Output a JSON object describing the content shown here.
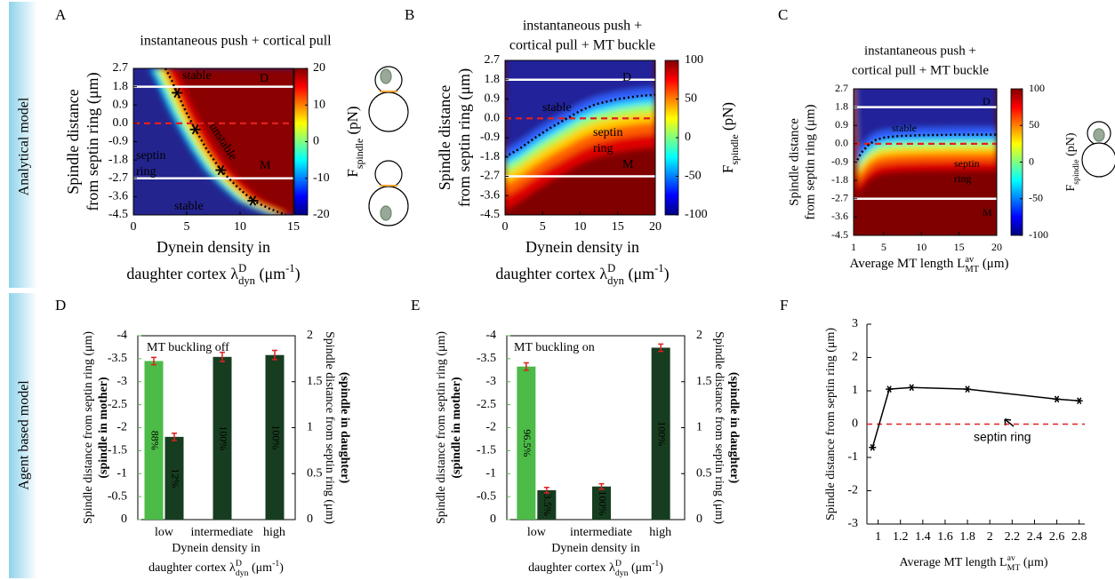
{
  "row_labels": [
    "Analytical model",
    "Agent based model"
  ],
  "chart_data": [
    {
      "panel": "A",
      "type": "heatmap",
      "title": [
        "instantaneous push + cortical pull"
      ],
      "xlabel": [
        "Dynein density in",
        [
          "daughter cortex λ",
          "D",
          "dyn",
          " (μm",
          "-1",
          ")"
        ]
      ],
      "ylabel": [
        "Spindle distance",
        "from septin ring (μm)"
      ],
      "xlim": [
        0,
        15
      ],
      "xticks": [
        0,
        5,
        10,
        15
      ],
      "ylim": [
        -4.5,
        2.7
      ],
      "yticks": [
        2.7,
        1.8,
        0.9,
        {
          "value": 0,
          "label": "0.0"
        },
        -0.9,
        -1.8,
        -2.7,
        -3.6,
        -4.5
      ],
      "colormap": "jet",
      "clim": [
        -20,
        20
      ],
      "cticks": [
        20,
        10,
        0,
        -10,
        -20
      ],
      "clabel": [
        "F",
        "spindle",
        " (pN)"
      ],
      "hlines": [
        1.8,
        -2.7
      ],
      "septin_line": 0,
      "boundary": {
        "x": [
          3.0,
          3.6,
          4.1,
          4.9,
          5.8,
          6.9,
          8.2,
          9.7,
          11.2,
          12.8,
          14.3
        ],
        "y": [
          2.7,
          2.1,
          1.5,
          0.6,
          -0.3,
          -1.3,
          -2.3,
          -3.1,
          -3.8,
          -4.2,
          -4.5
        ]
      },
      "markers": {
        "x": [
          4.1,
          5.8,
          8.2,
          11.2
        ],
        "y": [
          1.5,
          -0.3,
          -2.3,
          -3.8
        ]
      },
      "annotations": [
        "stable",
        "D",
        "unstable",
        "septin",
        "ring",
        "M",
        "stable"
      ]
    },
    {
      "panel": "B",
      "type": "heatmap",
      "title": [
        "instantaneous push +",
        "cortical pull + MT buckle"
      ],
      "xlabel": [
        "Dynein density in",
        [
          "daughter cortex λ",
          "D",
          "dyn",
          " (μm",
          "-1",
          ")"
        ]
      ],
      "ylabel": [
        "Spindle distance",
        "from septin ring (μm)"
      ],
      "xlim": [
        0,
        20
      ],
      "xticks": [
        0,
        5,
        10,
        15,
        20
      ],
      "ylim": [
        -4.5,
        2.7
      ],
      "yticks": [
        2.7,
        1.8,
        0.9,
        {
          "value": 0,
          "label": "0.0"
        },
        -0.9,
        -1.8,
        -2.7,
        -3.6,
        -4.5
      ],
      "colormap": "jet",
      "clim": [
        -100,
        100
      ],
      "cticks": [
        100,
        50,
        0,
        -50,
        -100
      ],
      "clabel": [
        "F",
        "spindle",
        " (pN)"
      ],
      "hlines": [
        1.8,
        -2.7
      ],
      "septin_line": 0,
      "boundary": {
        "x": [
          0,
          2,
          4,
          6,
          8,
          10,
          12,
          15,
          18,
          20
        ],
        "y": [
          -1.8,
          -1.4,
          -0.9,
          -0.45,
          -0.05,
          0.35,
          0.65,
          0.9,
          1.05,
          1.1
        ]
      },
      "annotations": [
        "D",
        "stable",
        "septin",
        "ring",
        "M"
      ]
    },
    {
      "panel": "C",
      "type": "heatmap",
      "title": [
        "instantaneous push +",
        "cortical pull + MT buckle"
      ],
      "xlabel": [
        [
          "Average MT length L",
          "av",
          "MT",
          " (μm)"
        ]
      ],
      "ylabel": [
        "Spindle distance",
        "from septin ring (μm)"
      ],
      "xlim": [
        1,
        20
      ],
      "xticks": [
        1,
        5,
        10,
        15,
        20
      ],
      "ylim": [
        -4.5,
        2.7
      ],
      "yticks": [
        2.7,
        1.8,
        0.9,
        {
          "value": 0,
          "label": "0.0"
        },
        -0.9,
        -1.8,
        -2.7,
        -3.6,
        -4.5
      ],
      "colormap": "jet",
      "clim": [
        -100,
        100
      ],
      "cticks": [
        100,
        50,
        0,
        -50,
        -100
      ],
      "clabel": [
        "F",
        "spindle",
        " (pN)"
      ],
      "hlines": [
        1.8,
        -2.7
      ],
      "septin_line": 0,
      "boundary": {
        "x": [
          1.5,
          2,
          3,
          4,
          5,
          7,
          10,
          15,
          20
        ],
        "y": [
          -0.8,
          -0.45,
          -0.05,
          0.2,
          0.3,
          0.38,
          0.42,
          0.45,
          0.45
        ]
      },
      "annotations": [
        "D",
        "stable",
        "septin",
        "ring",
        "M"
      ]
    },
    {
      "panel": "D",
      "type": "bar",
      "annotation": "MT buckling off",
      "categories": [
        "low",
        "intermediate",
        "high"
      ],
      "xlabel": [
        "Dynein density in",
        [
          "daughter cortex λ",
          "D",
          "dyn",
          " (μm",
          "-1",
          ")"
        ]
      ],
      "ylabel": [
        "Spindle distance from septin ring (μm)",
        "(spindle in mother)"
      ],
      "y2label": [
        "Spindle distance from septin ring (μm)",
        "(spindle in daughter)"
      ],
      "ylim": [
        0,
        -4
      ],
      "yticks": [
        -4,
        -3.5,
        -3,
        -2.5,
        -2,
        -1.5,
        -1,
        -0.5,
        0
      ],
      "y2lim": [
        0,
        2
      ],
      "y2ticks": [
        0,
        0.5,
        1,
        1.5,
        2
      ],
      "series": [
        {
          "color": "#4cbb47",
          "values": [
            -3.45,
            null,
            null
          ],
          "errors": [
            0.08,
            null,
            null
          ],
          "labels": [
            "88%",
            null,
            null
          ]
        },
        {
          "color": "#173d20",
          "axis": "y2",
          "values": [
            0.9,
            1.77,
            1.79
          ],
          "errors": [
            0.04,
            0.05,
            0.05
          ],
          "labels": [
            "12%",
            "100%",
            "100%"
          ]
        }
      ]
    },
    {
      "panel": "E",
      "type": "bar",
      "annotation": "MT buckling on",
      "categories": [
        "low",
        "intermediate",
        "high"
      ],
      "xlabel": [
        "Dynein density in",
        [
          "daughter cortex λ",
          "D",
          "dyn",
          " (μm",
          "-1",
          ")"
        ]
      ],
      "ylabel": [
        "Spindle distance from septin ring (μm)",
        "(spindle in mother)"
      ],
      "y2label": [
        "Spindle distance from septin ring (μm)",
        "(spindle in daughter)"
      ],
      "ylim": [
        0,
        -4
      ],
      "yticks": [
        -4,
        -3.5,
        -3,
        -2.5,
        -2,
        -1.5,
        -1,
        -0.5,
        0
      ],
      "y2lim": [
        0,
        2
      ],
      "y2ticks": [
        0,
        0.5,
        1,
        1.5,
        2
      ],
      "series": [
        {
          "color": "#4cbb47",
          "values": [
            -3.33,
            null,
            null
          ],
          "errors": [
            0.08,
            null,
            null
          ],
          "labels": [
            "96.5%",
            null,
            null
          ]
        },
        {
          "color": "#173d20",
          "axis": "y2",
          "values": [
            0.32,
            0.36,
            1.87
          ],
          "errors": [
            0.03,
            0.03,
            0.04
          ],
          "labels": [
            "3.5%",
            "100%",
            "100%"
          ]
        }
      ]
    },
    {
      "panel": "F",
      "type": "line",
      "annotation": "septin ring",
      "xlabel": [
        [
          "Average MT  length L",
          "av",
          "MT",
          " (μm)"
        ]
      ],
      "ylabel": [
        "Spindle distance from septin ring (μm)"
      ],
      "x": [
        0.95,
        1.1,
        1.3,
        1.8,
        2.6,
        2.8
      ],
      "series": [
        {
          "color": "#000000",
          "values": [
            -0.7,
            1.05,
            1.1,
            1.05,
            0.75,
            0.7
          ]
        }
      ],
      "xlim": [
        0.9,
        2.85
      ],
      "xticks": [
        1,
        1.2,
        1.4,
        1.6,
        1.8,
        2,
        2.2,
        2.4,
        2.6,
        2.8
      ],
      "ylim": [
        -3,
        3
      ],
      "yticks": [
        -3,
        -2,
        -1,
        0,
        1,
        2,
        3
      ],
      "septin_line": 0
    }
  ]
}
